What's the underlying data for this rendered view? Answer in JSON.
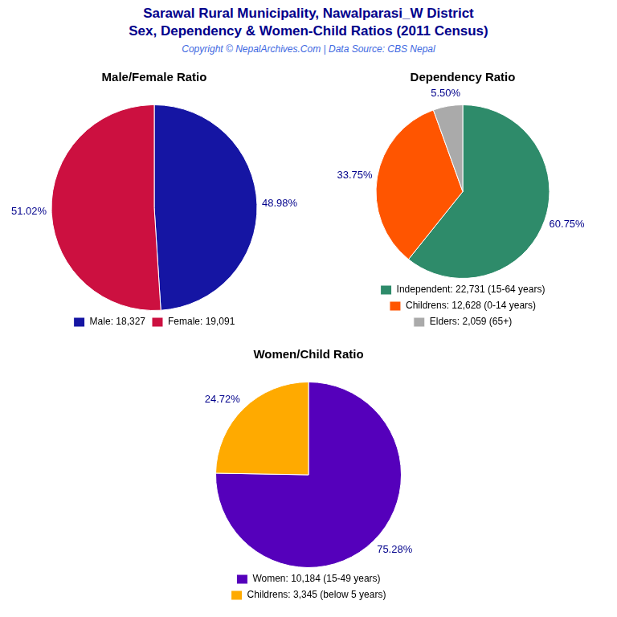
{
  "title": "Sarawal Rural Municipality, Nawalparasi_W District",
  "subtitle": "Sex, Dependency & Women-Child Ratios (2011 Census)",
  "annotations": [
    "Copyright © NepalArchives.Com | Data Source: CBS Nepal"
  ],
  "chart_data": [
    {
      "type": "pie",
      "title": "Male/Female Ratio",
      "categories": [
        "Male: 18,327",
        "Female: 19,091"
      ],
      "values": [
        48.98,
        51.02
      ],
      "value_labels": [
        "48.98%",
        "51.02%"
      ],
      "colors": [
        "#1515a3",
        "#cc1040"
      ],
      "data_labels": true,
      "legend": "bottom"
    },
    {
      "type": "pie",
      "title": "Dependency Ratio",
      "categories": [
        "Independent: 22,731 (15-64 years)",
        "Childrens: 12,628 (0-14 years)",
        "Elders: 2,059 (65+)"
      ],
      "values": [
        60.75,
        33.75,
        5.5
      ],
      "value_labels": [
        "60.75%",
        "33.75%",
        "5.50%"
      ],
      "colors": [
        "#2e8b6a",
        "#ff5500",
        "#aaaaaa"
      ],
      "data_labels": true,
      "legend": "bottom"
    },
    {
      "type": "pie",
      "title": "Women/Child Ratio",
      "categories": [
        "Women: 10,184 (15-49 years)",
        "Childrens: 3,345 (below 5 years)"
      ],
      "values": [
        75.28,
        24.72
      ],
      "value_labels": [
        "75.28%",
        "24.72%"
      ],
      "colors": [
        "#5500bb",
        "#ffaa00"
      ],
      "data_labels": true,
      "legend": "bottom"
    }
  ]
}
